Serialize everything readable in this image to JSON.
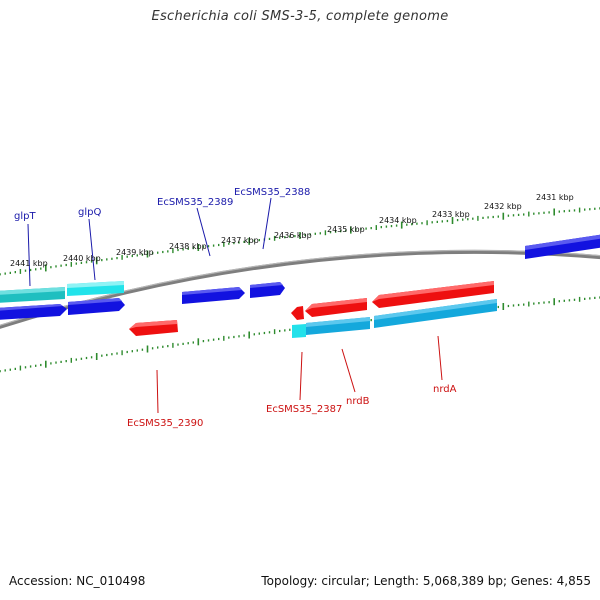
{
  "title": "Escherichia coli SMS-3-5, complete genome",
  "footer": {
    "accession": "Accession: NC_010498",
    "summary": "Topology: circular; Length: 5,068,389 bp; Genes: 4,855"
  },
  "colors": {
    "background": "#ffffff",
    "backbone": "#8a8a8a",
    "tick": "#2e8b2e",
    "forward_gene": "#1010dd",
    "forward_cds": "#22c8e8",
    "reverse_gene": "#ee1010",
    "reverse_cds": "#14aee0",
    "forward_label": "#1a1aaa",
    "reverse_label": "#cc1111"
  },
  "kbp_labels": [
    "2441 kbp",
    "2440 kbp",
    "2439 kbp",
    "2438 kbp",
    "2437 kbp",
    "2436 kbp",
    "2435 kbp",
    "2434 kbp",
    "2433 kbp",
    "2432 kbp",
    "2431 kbp"
  ],
  "gene_labels": {
    "forward": [
      "glpT",
      "glpQ",
      "EcSMS35_2389",
      "EcSMS35_2388"
    ],
    "reverse": [
      "EcSMS35_2390",
      "EcSMS35_2387",
      "nrdB",
      "nrdA"
    ]
  }
}
